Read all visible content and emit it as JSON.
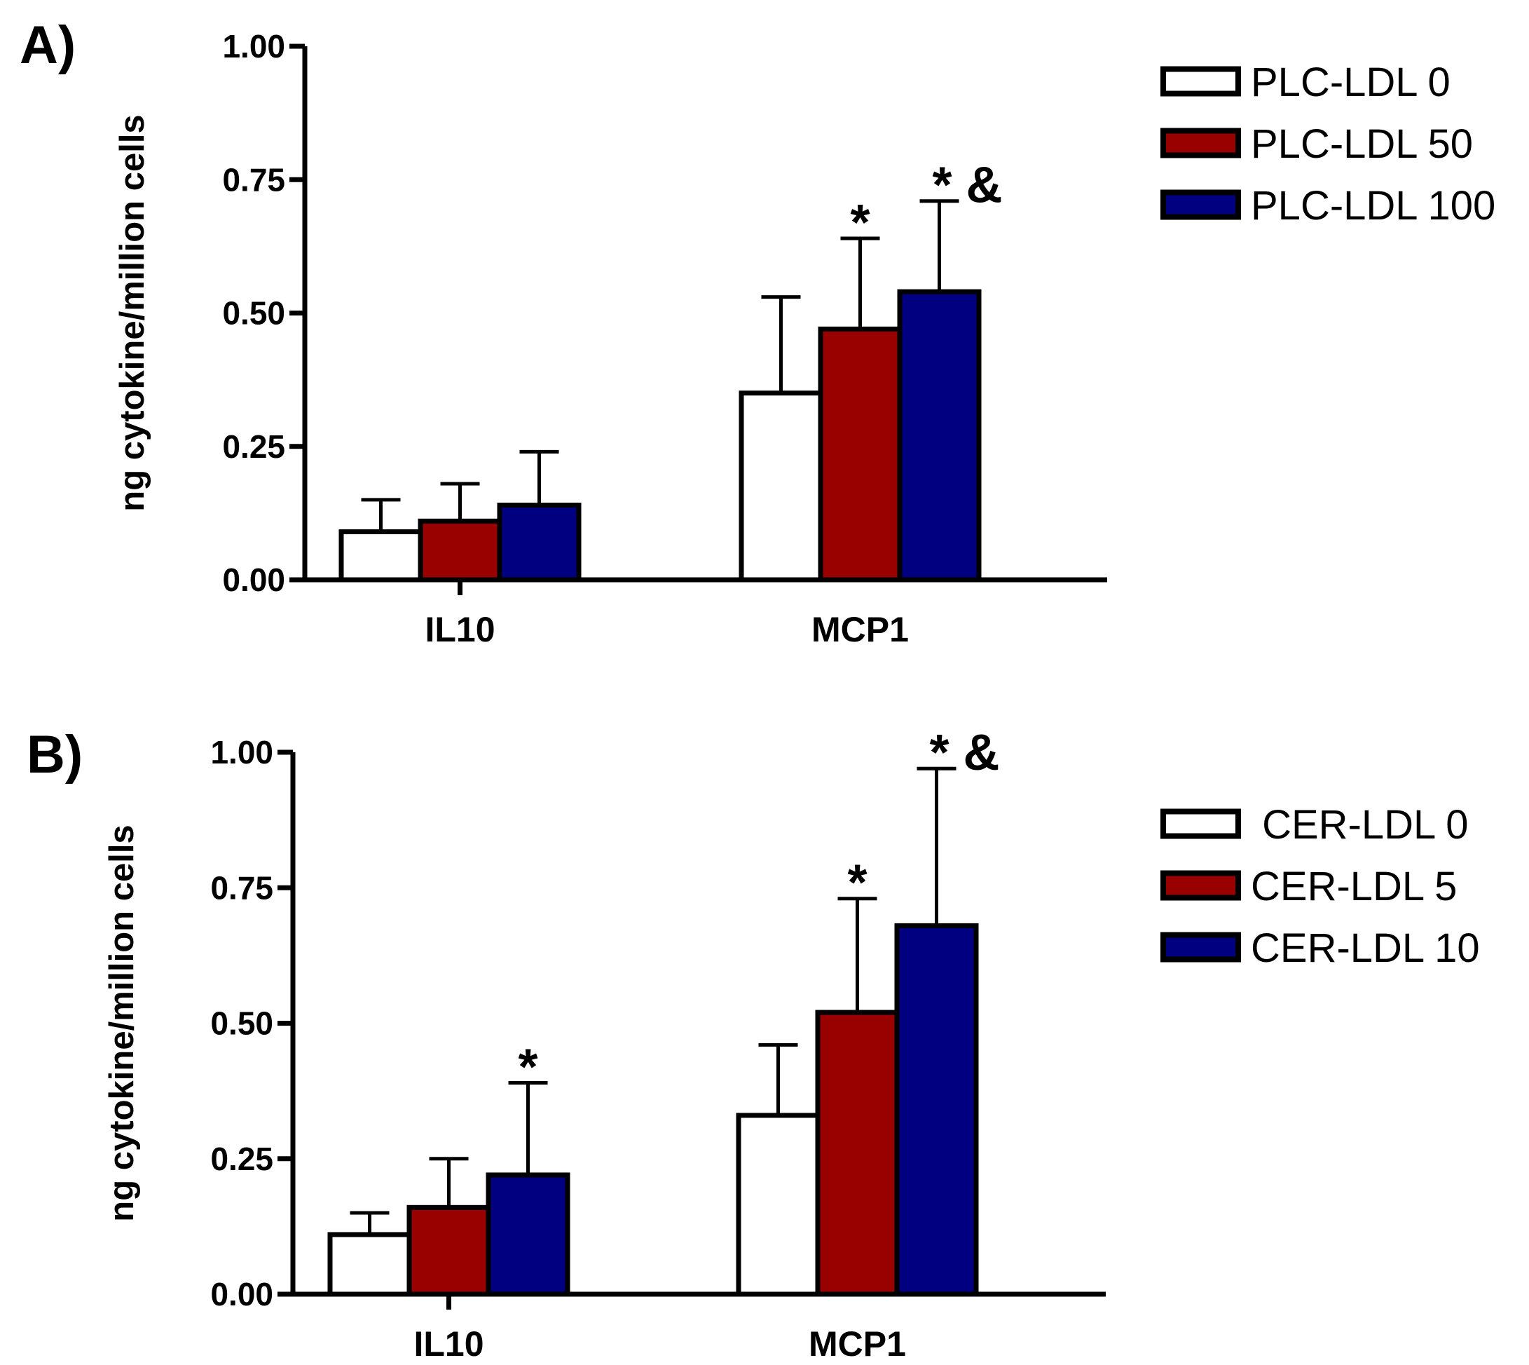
{
  "chart_data": [
    {
      "type": "bar",
      "panel_label": "A)",
      "ylabel": "ng cytokine/million cells",
      "xlabel": "",
      "ylim": [
        0,
        1.0
      ],
      "yticks": [
        "0.00",
        "0.25",
        "0.50",
        "0.75",
        "1.00"
      ],
      "categories": [
        "IL10",
        "MCP1"
      ],
      "series": [
        {
          "name": "PLC-LDL 0",
          "color": "#ffffff",
          "values": [
            0.09,
            0.35
          ],
          "errors": [
            0.06,
            0.18
          ]
        },
        {
          "name": "PLC-LDL 50",
          "color": "#990000",
          "values": [
            0.11,
            0.47
          ],
          "errors": [
            0.07,
            0.17
          ]
        },
        {
          "name": "PLC-LDL 100",
          "color": "#000080",
          "values": [
            0.14,
            0.54
          ],
          "errors": [
            0.1,
            0.17
          ]
        }
      ],
      "annotations": [
        {
          "category": "MCP1",
          "series": "PLC-LDL 50",
          "text": "*"
        },
        {
          "category": "MCP1",
          "series": "PLC-LDL 100",
          "text": "* &"
        }
      ],
      "legend_position": "top-right"
    },
    {
      "type": "bar",
      "panel_label": "B)",
      "ylabel": "ng cytokine/million cells",
      "xlabel": "",
      "ylim": [
        0,
        1.0
      ],
      "yticks": [
        "0.00",
        "0.25",
        "0.50",
        "0.75",
        "1.00"
      ],
      "categories": [
        "IL10",
        "MCP1"
      ],
      "series": [
        {
          "name": " CER-LDL 0",
          "color": "#ffffff",
          "values": [
            0.11,
            0.33
          ],
          "errors": [
            0.04,
            0.13
          ]
        },
        {
          "name": "CER-LDL 5",
          "color": "#990000",
          "values": [
            0.16,
            0.52
          ],
          "errors": [
            0.09,
            0.21
          ]
        },
        {
          "name": "CER-LDL 10",
          "color": "#000080",
          "values": [
            0.22,
            0.68
          ],
          "errors": [
            0.17,
            0.29
          ]
        }
      ],
      "annotations": [
        {
          "category": "IL10",
          "series": "CER-LDL 10",
          "text": "*"
        },
        {
          "category": "MCP1",
          "series": "CER-LDL 5",
          "text": "*"
        },
        {
          "category": "MCP1",
          "series": "CER-LDL 10",
          "text": "* &"
        }
      ],
      "legend_position": "right"
    }
  ]
}
